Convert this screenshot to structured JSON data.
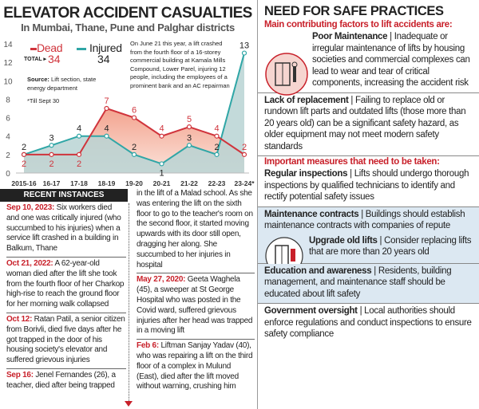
{
  "title": "ELEVATOR ACCIDENT CASUALTIES",
  "subtitle": "In Mumbai, Thane, Pune and Palghar districts",
  "legend": {
    "dead": "Dead",
    "injured": "Injured"
  },
  "totals": {
    "label": "TOTAL",
    "dead": "34",
    "injured": "34"
  },
  "source": {
    "label": "Source:",
    "text": " Lift section, state energy department"
  },
  "footnote": "*Till Sept 30",
  "annotation": "On June 21 this year, a lift crashed from the fourth floor of a 16-storey commercial building at Kamala Mills Compound, Lower Parel, injuring 12 people, including the employees of a prominent bank and an AC repairman",
  "colors": {
    "dead": "#d0343c",
    "injured": "#2fa6a6",
    "accent": "#c8202a"
  },
  "chart_data": {
    "type": "line",
    "categories": [
      "2015-16",
      "16-17",
      "17-18",
      "18-19",
      "19-20",
      "20-21",
      "21-22",
      "22-23",
      "23-24*"
    ],
    "series": [
      {
        "name": "Dead",
        "values": [
          2,
          2,
          2,
          7,
          6,
          4,
          5,
          4,
          2
        ]
      },
      {
        "name": "Injured",
        "values": [
          2,
          3,
          4,
          4,
          2,
          1,
          3,
          2,
          13
        ]
      }
    ],
    "yticks": [
      0,
      2,
      4,
      6,
      8,
      10,
      12,
      14
    ],
    "ylim": [
      0,
      14
    ],
    "legend": "top-left",
    "grid": false
  },
  "recent": {
    "heading": "RECENT INSTANCES",
    "left": [
      {
        "date": "Sep 10, 2023:",
        "text": " Six workers died and one was critically injured (who succumbed to his injuries) when a service lift crashed in a building in Balkum, Thane"
      },
      {
        "date": "Oct 21, 2022:",
        "text": " A 62-year-old woman died after the lift she took from the fourth floor of her Charkop high-rise to reach the ground floor for her morning walk collapsed"
      },
      {
        "date": "Oct 12:",
        "text": " Ratan Patil, a senior citizen from Borivli, died five days after he got trapped in the door of his housing society's elevator and suffered grievous injuries"
      },
      {
        "date": "Sep 16:",
        "text": " Jenel Fernandes (26), a teacher, died after being trapped"
      }
    ],
    "right": [
      {
        "date": "",
        "text": "in the lift of a Malad school. As she was entering the lift on the sixth floor to go to the teacher's room on the second floor, it started moving upwards with its door still open, dragging her along. She succumbed to her injuries in hospital"
      },
      {
        "date": "May 27, 2020:",
        "text": " Geeta Waghela (45), a sweeper at St George Hospital who was posted in the Covid ward, suffered grievous injuries after her head was trapped in a moving lift"
      },
      {
        "date": "Feb 6:",
        "text": " Liftman Sanjay Yadav (40), who was repairing a lift on the third floor of a complex in Mulund (East), died after the lift moved without warning, crushing him"
      }
    ]
  },
  "practices": {
    "title": "NEED FOR SAFE PRACTICES",
    "factors_heading": "Main contributing factors to lift accidents are:",
    "factors": [
      {
        "label": "Poor Maintenance",
        "text": " | Inadequate or irregular maintenance of lifts by housing societies and commercial complexes can lead to wear and tear of critical components, increasing the accident risk",
        "icon": "lift-maintenance-icon"
      },
      {
        "label": "Lack of replacement",
        "text": " | Failing to replace old or rundown lift parts and outdated lifts (those more than 20 years old) can be a significant safety hazard, as older equipment may not meet modern safety standards"
      }
    ],
    "measures_heading": "Important measures that need to be taken:",
    "measures": [
      {
        "label": "Regular inspections",
        "text": " | Lifts should undergo thorough inspections by qualified technicians to identify and rectify potential safety issues"
      },
      {
        "label": "Maintenance contracts",
        "text": " | Buildings should establish maintenance contracts with companies of repute",
        "icon": "lift-contract-icon"
      },
      {
        "label": "Upgrade old lifts",
        "text": " | Consider replacing lifts that are more than 20 years old"
      },
      {
        "label": "Education and awareness",
        "text": " | Residents, building management, and maintenance staff should be educated about lift safety"
      },
      {
        "label": "Government oversight",
        "text": " | Local authorities should enforce regulations and conduct inspections to ensure safety compliance"
      }
    ]
  }
}
